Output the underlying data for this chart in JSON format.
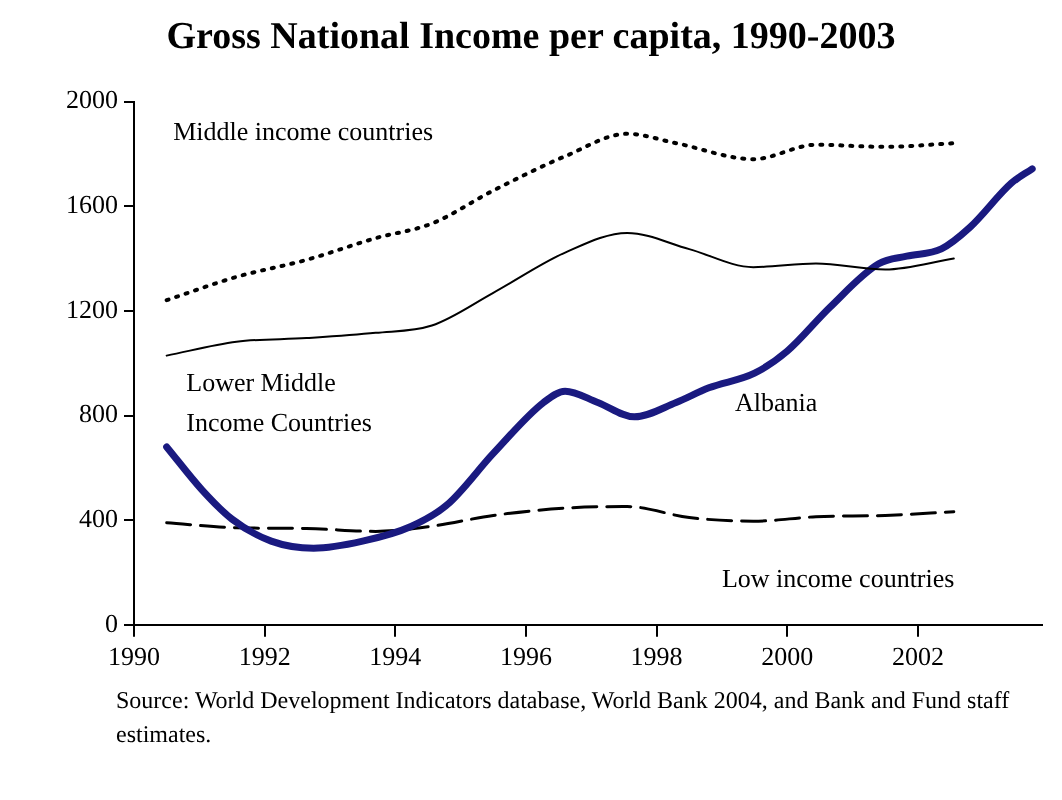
{
  "chart_data": {
    "type": "line",
    "title": "Gross National Income per capita, 1990-2003",
    "xlim": [
      1990,
      2003.9
    ],
    "xticks": [
      1990,
      1992,
      1994,
      1996,
      1998,
      2000,
      2002
    ],
    "ylim": [
      0,
      2000
    ],
    "yticks": [
      0,
      400,
      800,
      1200,
      1600,
      2000
    ],
    "grid": false,
    "legend": false,
    "marker": "none",
    "series": [
      {
        "name": "Middle income countries",
        "color": "#000000",
        "line_style": "dotted",
        "x": [
          1990.5,
          1991.57,
          1992.64,
          1993.7,
          1994.56,
          1995.5,
          1996.6,
          1997.55,
          1998.3,
          1999.48,
          2000.44,
          2001.5,
          2002.55
        ],
        "values": [
          1241,
          1330,
          1395,
          1478,
          1534,
          1660,
          1791,
          1877,
          1841,
          1780,
          1835,
          1827,
          1841
        ]
      },
      {
        "name": "Lower Middle Income Countries",
        "color": "#000000",
        "line_style": "solid",
        "x": [
          1990.5,
          1991.57,
          1992.64,
          1993.7,
          1994.56,
          1995.5,
          1996.6,
          1997.55,
          1998.5,
          1999.48,
          2000.44,
          2001.5,
          2002.55
        ],
        "values": [
          1029,
          1082,
          1096,
          1116,
          1144,
          1269,
          1423,
          1498,
          1436,
          1367,
          1381,
          1358,
          1400
        ]
      },
      {
        "name": "Albania",
        "color": "#1a1a80",
        "line_style": "solid",
        "x": [
          1990.5,
          1991.04,
          1991.5,
          1992.1,
          1992.75,
          1993.5,
          1994.24,
          1994.8,
          1995.5,
          1996.27,
          1996.6,
          1997.1,
          1997.66,
          1998.3,
          1998.8,
          1999.5,
          2000.0,
          2000.65,
          2001.4,
          2001.83,
          2002.36,
          2002.8,
          2003.43,
          2003.75
        ],
        "values": [
          680,
          516,
          404,
          320,
          293,
          320,
          376,
          460,
          655,
          850,
          893,
          850,
          795,
          850,
          906,
          962,
          1046,
          1213,
          1380,
          1409,
          1437,
          1520,
          1688,
          1743
        ]
      },
      {
        "name": "Low income countries",
        "color": "#000000",
        "line_style": "dashed",
        "x": [
          1990.5,
          1991.57,
          1992.64,
          1993.7,
          1994.56,
          1995.5,
          1996.6,
          1997.55,
          1998.5,
          1999.48,
          2000.44,
          2001.5,
          2002.55
        ],
        "values": [
          390,
          371,
          368,
          357,
          377,
          418,
          446,
          452,
          410,
          396,
          413,
          418,
          432
        ]
      }
    ],
    "annotations": [
      "Source: World Development Indicators database, World Bank 2004, and Bank and Fund staff estimates."
    ]
  }
}
